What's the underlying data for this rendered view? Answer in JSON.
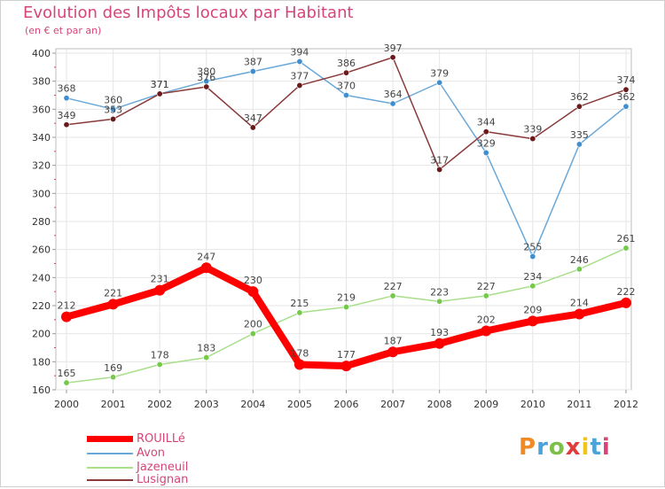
{
  "header": {
    "title": "Evolution des Impôts locaux par Habitant",
    "subtitle": "(en € et par an)"
  },
  "logo": {
    "text": "Proxiti",
    "colors": [
      "#f08a24",
      "#4aa3d9",
      "#7cc04a",
      "#e23b3b",
      "#f0c419",
      "#4aa3d9",
      "#d6457a"
    ]
  },
  "chart_data": {
    "type": "line",
    "title": "Evolution des Impôts locaux par Habitant",
    "subtitle": "(en € et par an)",
    "xlabel": "",
    "ylabel": "",
    "categories": [
      "2000",
      "2001",
      "2002",
      "2003",
      "2004",
      "2005",
      "2006",
      "2007",
      "2008",
      "2009",
      "2010",
      "2011",
      "2012"
    ],
    "ylim": [
      160,
      400
    ],
    "yticks": [
      160,
      180,
      200,
      220,
      240,
      260,
      280,
      300,
      320,
      340,
      360,
      380,
      400
    ],
    "grid": true,
    "series": [
      {
        "name": "ROUILLé",
        "color": "#ff0000",
        "bold": true,
        "values": [
          212,
          221,
          231,
          247,
          230,
          178,
          177,
          187,
          193,
          202,
          209,
          214,
          222
        ]
      },
      {
        "name": "Avon",
        "color": "#6aa8d8",
        "marker": "#3f8fd0",
        "values": [
          368,
          360,
          371,
          380,
          387,
          394,
          370,
          364,
          379,
          329,
          255,
          335,
          362
        ]
      },
      {
        "name": "Jazeneuil",
        "color": "#a8df8a",
        "marker": "#74c94a",
        "values": [
          165,
          169,
          178,
          183,
          200,
          215,
          219,
          227,
          223,
          227,
          234,
          246,
          261
        ]
      },
      {
        "name": "Lusignan",
        "color": "#8a3a3a",
        "marker": "#6a1a1a",
        "values": [
          349,
          353,
          371,
          376,
          347,
          377,
          386,
          397,
          317,
          344,
          339,
          362,
          374
        ]
      }
    ],
    "labels": {
      "ROUILLé": [
        "212",
        "221",
        "231",
        "247",
        "230",
        "178",
        "177",
        "187",
        "193",
        "202",
        "209",
        "214",
        "222"
      ],
      "Avon": [
        "368",
        "360",
        "371",
        "380",
        "387",
        "394",
        "370",
        "364",
        "379",
        "329",
        "255",
        "335",
        "362"
      ],
      "Jazeneuil": [
        "165",
        "169",
        "178",
        "183",
        "200",
        "215",
        "219",
        "227",
        "223",
        "227",
        "234",
        "246",
        "261"
      ],
      "Lusignan": [
        "349",
        "353",
        "371",
        "376",
        "347",
        "377",
        "386",
        "397",
        "317",
        "344",
        "339",
        "362",
        "374"
      ]
    },
    "legend_position": "bottom-left"
  }
}
